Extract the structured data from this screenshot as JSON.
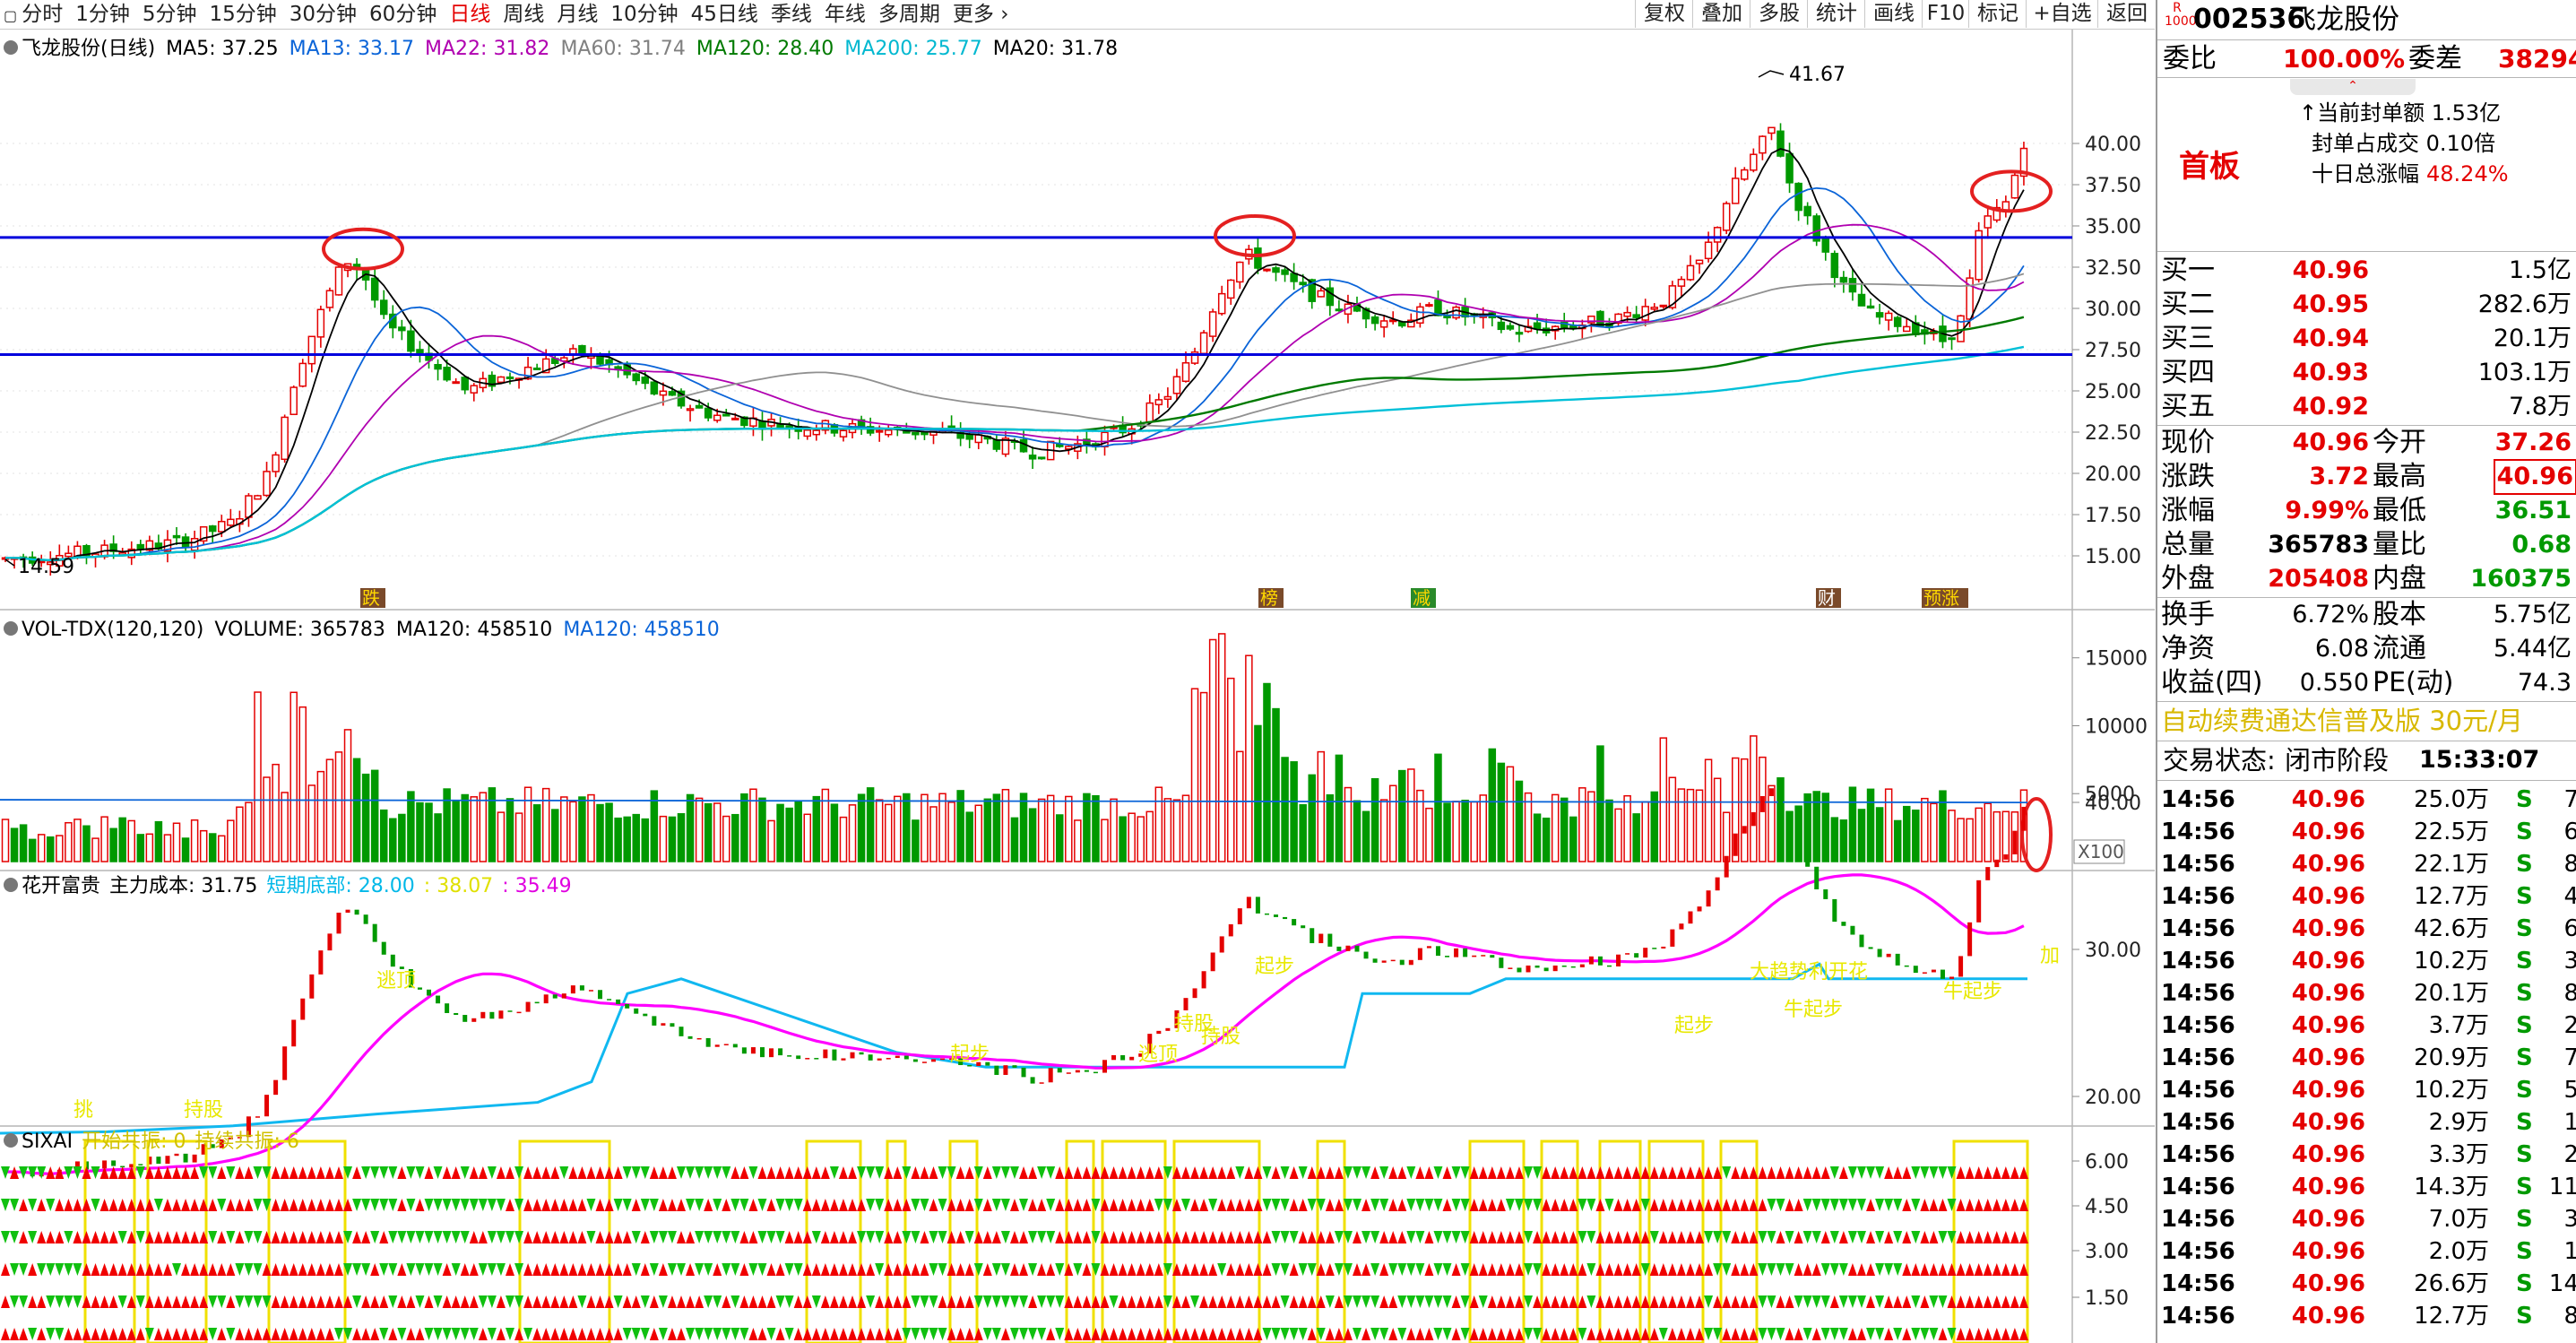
{
  "toolbar": {
    "left_items": [
      "分时",
      "1分钟",
      "5分钟",
      "15分钟",
      "30分钟",
      "60分钟",
      "日线",
      "周线",
      "月线",
      "10分钟",
      "45日线",
      "季线",
      "年线",
      "多周期",
      "更多"
    ],
    "active_index": 6,
    "right_items": [
      "复权",
      "叠加",
      "多股",
      "统计",
      "画线",
      "F10",
      "标记",
      "+自选",
      "返回"
    ]
  },
  "main_panel": {
    "legend": [
      {
        "label": "飞龙股份(日线)",
        "color": "#000000"
      },
      {
        "label": "MA5: 37.25",
        "color": "#000000"
      },
      {
        "label": "MA13: 33.17",
        "color": "#0a64d8"
      },
      {
        "label": "MA22: 31.82",
        "color": "#b000b0"
      },
      {
        "label": "MA60: 31.74",
        "color": "#808080"
      },
      {
        "label": "MA120: 28.40",
        "color": "#007a00"
      },
      {
        "label": "MA200: 25.77",
        "color": "#00b8d0"
      },
      {
        "label": "MA20: 31.78",
        "color": "#000000"
      }
    ],
    "high_label": "41.67",
    "low_label": "14.59",
    "y_ticks": [
      "40.00",
      "37.50",
      "35.00",
      "32.50",
      "30.00",
      "27.50",
      "25.00",
      "22.50",
      "20.00",
      "17.50",
      "15.00"
    ],
    "y_tick_values": [
      40,
      37.5,
      35,
      32.5,
      30,
      27.5,
      25,
      22.5,
      20,
      17.5,
      15
    ],
    "event_markers": [
      "跌",
      "榜",
      "减",
      "财",
      "预涨"
    ],
    "support_lines": [
      34.3,
      27.2
    ]
  },
  "vol_panel": {
    "legend": [
      {
        "label": "VOL-TDX(120,120)",
        "color": "#000000"
      },
      {
        "label": "VOLUME: 365783",
        "color": "#000000"
      },
      {
        "label": "MA120: 458510",
        "color": "#000000"
      },
      {
        "label": "MA120: 458510",
        "color": "#0a64d8"
      }
    ],
    "y_ticks": [
      "15000",
      "10000",
      "5000"
    ],
    "unit_label": "X100"
  },
  "flower_panel": {
    "legend": [
      {
        "label": "花开富贵",
        "color": "#000000"
      },
      {
        "label": "主力成本: 31.75",
        "color": "#000000"
      },
      {
        "label": "短期底部: 28.00",
        "color": "#00b8e8"
      },
      {
        "label": ": 38.07",
        "color": "#e0e000"
      },
      {
        "label": ": 35.49",
        "color": "#e000e0"
      }
    ],
    "y_ticks": [
      "40.00",
      "30.00",
      "20.00"
    ],
    "annotations": [
      "挑",
      "逃顶",
      "持股",
      "起步",
      "逃顶",
      "起步",
      "持股",
      "牛起步",
      "大趋势利开花",
      "加",
      "牛起步",
      "起步",
      "持股"
    ]
  },
  "sixai_panel": {
    "legend": [
      {
        "label": "SIXAI",
        "color": "#000000"
      },
      {
        "label": "开始共振: 0",
        "color": "#d0c000"
      },
      {
        "label": "持续共振: 6",
        "color": "#d0c000"
      }
    ],
    "y_ticks": [
      "6.00",
      "4.50",
      "3.00",
      "1.50"
    ]
  },
  "quote": {
    "code": "002536",
    "name": "飞龙股份",
    "badge_top": "R",
    "badge_bottom": "1000",
    "weibi_label": "委比",
    "weibi_value": "100.00%",
    "weicha_label": "委差",
    "weicha_value": "38294",
    "board_label": "首板",
    "seal_amount": "↑当前封单额 1.53亿",
    "seal_ratio": "封单占成交 0.10倍",
    "ten_day": "十日总涨幅",
    "ten_day_value": "48.24%",
    "bids": [
      {
        "label": "买一",
        "price": "40.96",
        "vol": "1.5亿"
      },
      {
        "label": "买二",
        "price": "40.95",
        "vol": "282.6万"
      },
      {
        "label": "买三",
        "price": "40.94",
        "vol": "20.1万"
      },
      {
        "label": "买四",
        "price": "40.93",
        "vol": "103.1万"
      },
      {
        "label": "买五",
        "price": "40.92",
        "vol": "7.8万"
      }
    ],
    "stats_a": [
      {
        "l1": "现价",
        "v1": "40.96",
        "c1": "red",
        "l2": "今开",
        "v2": "37.26",
        "c2": "red"
      },
      {
        "l1": "涨跌",
        "v1": "3.72",
        "c1": "red",
        "l2": "最高",
        "v2": "40.96",
        "c2": "red"
      },
      {
        "l1": "涨幅",
        "v1": "9.99%",
        "c1": "red",
        "l2": "最低",
        "v2": "36.51",
        "c2": "green"
      },
      {
        "l1": "总量",
        "v1": "365783",
        "c1": "blk",
        "l2": "量比",
        "v2": "0.68",
        "c2": "green"
      },
      {
        "l1": "外盘",
        "v1": "205408",
        "c1": "red",
        "l2": "内盘",
        "v2": "160375",
        "c2": "green"
      }
    ],
    "stats_b": [
      {
        "l1": "换手",
        "v1": "6.72%",
        "l2": "股本",
        "v2": "5.75亿"
      },
      {
        "l1": "净资",
        "v1": "6.08",
        "l2": "流通",
        "v2": "5.44亿"
      },
      {
        "l1": "收益(四)",
        "v1": "0.550",
        "l2": "PE(动)",
        "v2": "74.3"
      }
    ],
    "promo": "自动续费通达信普及版  30元/月",
    "status_label": "交易状态:",
    "status_value": "闭市阶段",
    "status_time": "15:33:07",
    "ticks": [
      {
        "t": "14:56",
        "p": "40.96",
        "v": "25.0万",
        "s": "S",
        "n": "7"
      },
      {
        "t": "14:56",
        "p": "40.96",
        "v": "22.5万",
        "s": "S",
        "n": "6"
      },
      {
        "t": "14:56",
        "p": "40.96",
        "v": "22.1万",
        "s": "S",
        "n": "8"
      },
      {
        "t": "14:56",
        "p": "40.96",
        "v": "12.7万",
        "s": "S",
        "n": "4"
      },
      {
        "t": "14:56",
        "p": "40.96",
        "v": "42.6万",
        "s": "S",
        "n": "6"
      },
      {
        "t": "14:56",
        "p": "40.96",
        "v": "10.2万",
        "s": "S",
        "n": "3"
      },
      {
        "t": "14:56",
        "p": "40.96",
        "v": "20.1万",
        "s": "S",
        "n": "8"
      },
      {
        "t": "14:56",
        "p": "40.96",
        "v": "3.7万",
        "s": "S",
        "n": "2"
      },
      {
        "t": "14:56",
        "p": "40.96",
        "v": "20.9万",
        "s": "S",
        "n": "7"
      },
      {
        "t": "14:56",
        "p": "40.96",
        "v": "10.2万",
        "s": "S",
        "n": "5"
      },
      {
        "t": "14:56",
        "p": "40.96",
        "v": "2.9万",
        "s": "S",
        "n": "1"
      },
      {
        "t": "14:56",
        "p": "40.96",
        "v": "3.3万",
        "s": "S",
        "n": "2"
      },
      {
        "t": "14:56",
        "p": "40.96",
        "v": "14.3万",
        "s": "S",
        "n": "11"
      },
      {
        "t": "14:56",
        "p": "40.96",
        "v": "7.0万",
        "s": "S",
        "n": "3"
      },
      {
        "t": "14:56",
        "p": "40.96",
        "v": "2.0万",
        "s": "S",
        "n": "1"
      },
      {
        "t": "14:56",
        "p": "40.96",
        "v": "26.6万",
        "s": "S",
        "n": "14"
      },
      {
        "t": "14:56",
        "p": "40.96",
        "v": "12.7万",
        "s": "S",
        "n": "8"
      }
    ]
  },
  "colors": {
    "up": "#e40000",
    "down": "#009900",
    "accent": "#0000dd"
  }
}
